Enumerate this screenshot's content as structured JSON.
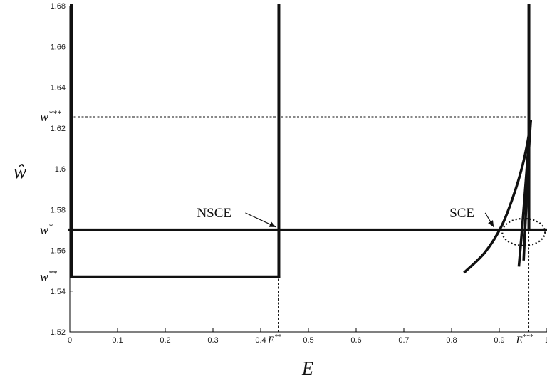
{
  "chart_data": {
    "type": "line",
    "xlabel": "E",
    "ylabel": "ŵ",
    "xlim": [
      0,
      1
    ],
    "ylim": [
      1.52,
      1.68
    ],
    "x_ticks": [
      0,
      0.1,
      0.2,
      0.3,
      0.4,
      0.5,
      0.6,
      0.7,
      0.8,
      0.9,
      1
    ],
    "x_tick_labels": [
      "0",
      "0.1",
      "0.2",
      "0.3",
      "0.4",
      "0.5",
      "0.6",
      "0.7",
      "0.8",
      "0.9",
      "1"
    ],
    "y_ticks": [
      1.52,
      1.54,
      1.56,
      1.58,
      1.6,
      1.62,
      1.64,
      1.66,
      1.68
    ],
    "y_tick_labels": [
      "1.52",
      "1.54",
      "1.56",
      "1.58",
      "1.6",
      "1.62",
      "1.64",
      "1.66",
      "1.68"
    ],
    "y_markers": [
      {
        "label": "w*",
        "value": 1.57
      },
      {
        "label": "w**",
        "value": 1.547
      },
      {
        "label": "w***",
        "value": 1.6255
      }
    ],
    "x_markers": [
      {
        "label": "E**",
        "value": 0.438
      },
      {
        "label": "E***",
        "value": 0.962
      }
    ],
    "series": [
      {
        "style": "solid-thick",
        "x": [
          0.003,
          0.003
        ],
        "y": [
          1.68,
          1.547
        ]
      },
      {
        "style": "solid-thick",
        "x": [
          0.003,
          0.438
        ],
        "y": [
          1.547,
          1.547
        ]
      },
      {
        "style": "solid-thick",
        "x": [
          0.438,
          0.438
        ],
        "y": [
          1.547,
          1.68
        ]
      },
      {
        "style": "solid-thick",
        "x": [
          0,
          1
        ],
        "y": [
          1.57,
          1.57
        ]
      },
      {
        "style": "solid-thick",
        "x": [
          0.962,
          0.962
        ],
        "y": [
          1.57,
          1.68
        ]
      },
      {
        "style": "curve",
        "x": [
          0.826,
          0.87,
          0.905,
          0.93,
          0.948,
          0.96,
          0.966
        ],
        "y": [
          1.549,
          1.559,
          1.572,
          1.587,
          1.601,
          1.614,
          1.624
        ]
      },
      {
        "style": "curve",
        "x": [
          0.941,
          0.949,
          0.957,
          0.962,
          0.966
        ],
        "y": [
          1.552,
          1.574,
          1.598,
          1.614,
          1.624
        ]
      },
      {
        "style": "curve",
        "x": [
          0.951,
          0.956,
          0.961,
          0.964,
          0.966
        ],
        "y": [
          1.555,
          1.58,
          1.605,
          1.617,
          1.624
        ]
      },
      {
        "style": "dashed",
        "x": [
          0,
          0.966
        ],
        "y": [
          1.6255,
          1.6255
        ]
      },
      {
        "style": "dashed",
        "x": [
          0.438,
          0.438
        ],
        "y": [
          1.52,
          1.547
        ]
      },
      {
        "style": "dashed",
        "x": [
          0.962,
          0.962
        ],
        "y": [
          1.52,
          1.57
        ]
      }
    ],
    "annotations": [
      {
        "text": "NSCE",
        "x": 0.438,
        "y": 1.57
      },
      {
        "text": "SCE",
        "x": 0.96,
        "y": 1.57
      }
    ],
    "grid": false,
    "legend": "none"
  }
}
